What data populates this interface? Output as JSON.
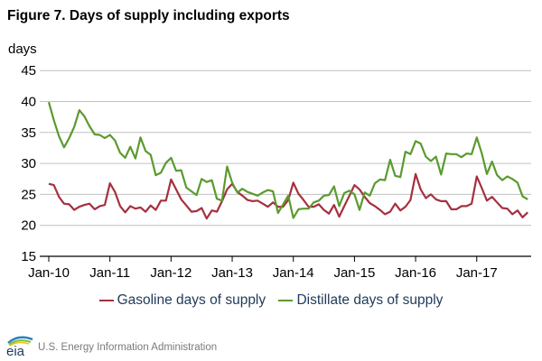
{
  "chart_data": {
    "type": "line",
    "title": "Figure 7. Days of supply including exports",
    "ylabel": "days",
    "xlabel": "",
    "ylim": [
      15,
      45
    ],
    "yticks": [
      "15",
      "20",
      "25",
      "30",
      "35",
      "40",
      "45"
    ],
    "xticks": [
      "Jan-10",
      "Jan-11",
      "Jan-12",
      "Jan-13",
      "Jan-14",
      "Jan-15",
      "Jan-16",
      "Jan-17"
    ],
    "x_start": "Jan-2010",
    "x_frequency": "monthly",
    "grid": true,
    "legend_position": "bottom",
    "series": [
      {
        "name": "Gasoline days of supply",
        "color": "#a5303f",
        "values": [
          26.7,
          26.5,
          24.6,
          23.5,
          23.4,
          22.5,
          23.0,
          23.3,
          23.5,
          22.6,
          23.1,
          23.3,
          26.8,
          25.4,
          23.1,
          22.1,
          23.1,
          22.7,
          22.9,
          22.2,
          23.2,
          22.5,
          24.0,
          24.0,
          27.4,
          25.8,
          24.2,
          23.2,
          22.2,
          22.3,
          22.8,
          21.1,
          22.4,
          22.2,
          23.9,
          25.8,
          26.7,
          25.4,
          24.8,
          24.1,
          23.9,
          24.0,
          23.5,
          23.0,
          23.7,
          23.0,
          23.0,
          24.1,
          26.9,
          25.1,
          24.1,
          23.0,
          23.0,
          23.4,
          22.5,
          21.9,
          23.3,
          21.4,
          23.1,
          24.8,
          26.5,
          25.8,
          24.6,
          23.6,
          23.1,
          22.5,
          21.8,
          22.2,
          23.5,
          22.4,
          23.0,
          24.1,
          28.3,
          25.8,
          24.4,
          25.0,
          24.2,
          23.9,
          23.9,
          22.6,
          22.6,
          23.1,
          23.1,
          23.5,
          27.9,
          26.0,
          24.0,
          24.6,
          23.7,
          22.8,
          22.7,
          21.8,
          22.4,
          21.3,
          22.1
        ]
      },
      {
        "name": "Distillate days of supply",
        "color": "#5b9a2f",
        "values": [
          39.9,
          37.0,
          34.4,
          32.6,
          34.1,
          35.9,
          38.6,
          37.6,
          36.0,
          34.7,
          34.6,
          34.1,
          34.6,
          33.7,
          31.7,
          30.9,
          32.7,
          30.8,
          34.2,
          32.0,
          31.4,
          28.1,
          28.5,
          30.1,
          30.9,
          28.8,
          28.9,
          26.1,
          25.5,
          24.9,
          27.5,
          27.0,
          27.3,
          24.3,
          24.0,
          29.5,
          26.9,
          25.3,
          25.9,
          25.4,
          25.1,
          24.8,
          25.3,
          25.7,
          25.5,
          22.0,
          23.4,
          24.8,
          21.2,
          22.6,
          22.7,
          22.7,
          23.7,
          24.0,
          24.8,
          24.9,
          26.3,
          23.1,
          25.2,
          25.6,
          25.0,
          22.5,
          25.3,
          24.8,
          26.8,
          27.4,
          27.3,
          30.6,
          28.0,
          27.8,
          31.9,
          31.5,
          33.6,
          33.2,
          31.1,
          30.4,
          31.1,
          28.2,
          31.6,
          31.5,
          31.5,
          31.0,
          31.6,
          31.5,
          34.2,
          31.6,
          28.3,
          30.3,
          28.1,
          27.3,
          27.9,
          27.5,
          26.9,
          24.7,
          24.2
        ]
      }
    ]
  },
  "footer": {
    "agency": "U.S. Energy Information Administration",
    "logo_text": "eia"
  }
}
